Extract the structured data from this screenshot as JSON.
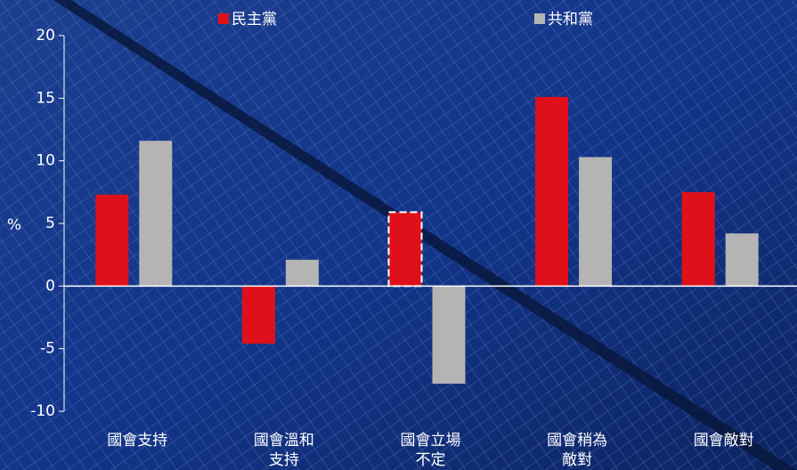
{
  "chart_data": {
    "type": "bar",
    "categories": [
      "國會支持",
      "國會溫和支持",
      "國會立場不定",
      "國會稍為敵對",
      "國會敵對"
    ],
    "series": [
      {
        "name": "民主黨",
        "color": "#e0101a",
        "values": [
          7.3,
          -4.6,
          5.9,
          15.1,
          7.5
        ]
      },
      {
        "name": "共和黨",
        "color": "#b4b4b4",
        "values": [
          11.6,
          2.1,
          -7.8,
          10.3,
          4.2
        ]
      }
    ],
    "y_label": "%",
    "ylim": [
      -10,
      20
    ],
    "yticks": [
      -10,
      -5,
      0,
      5,
      10,
      15,
      20
    ]
  }
}
